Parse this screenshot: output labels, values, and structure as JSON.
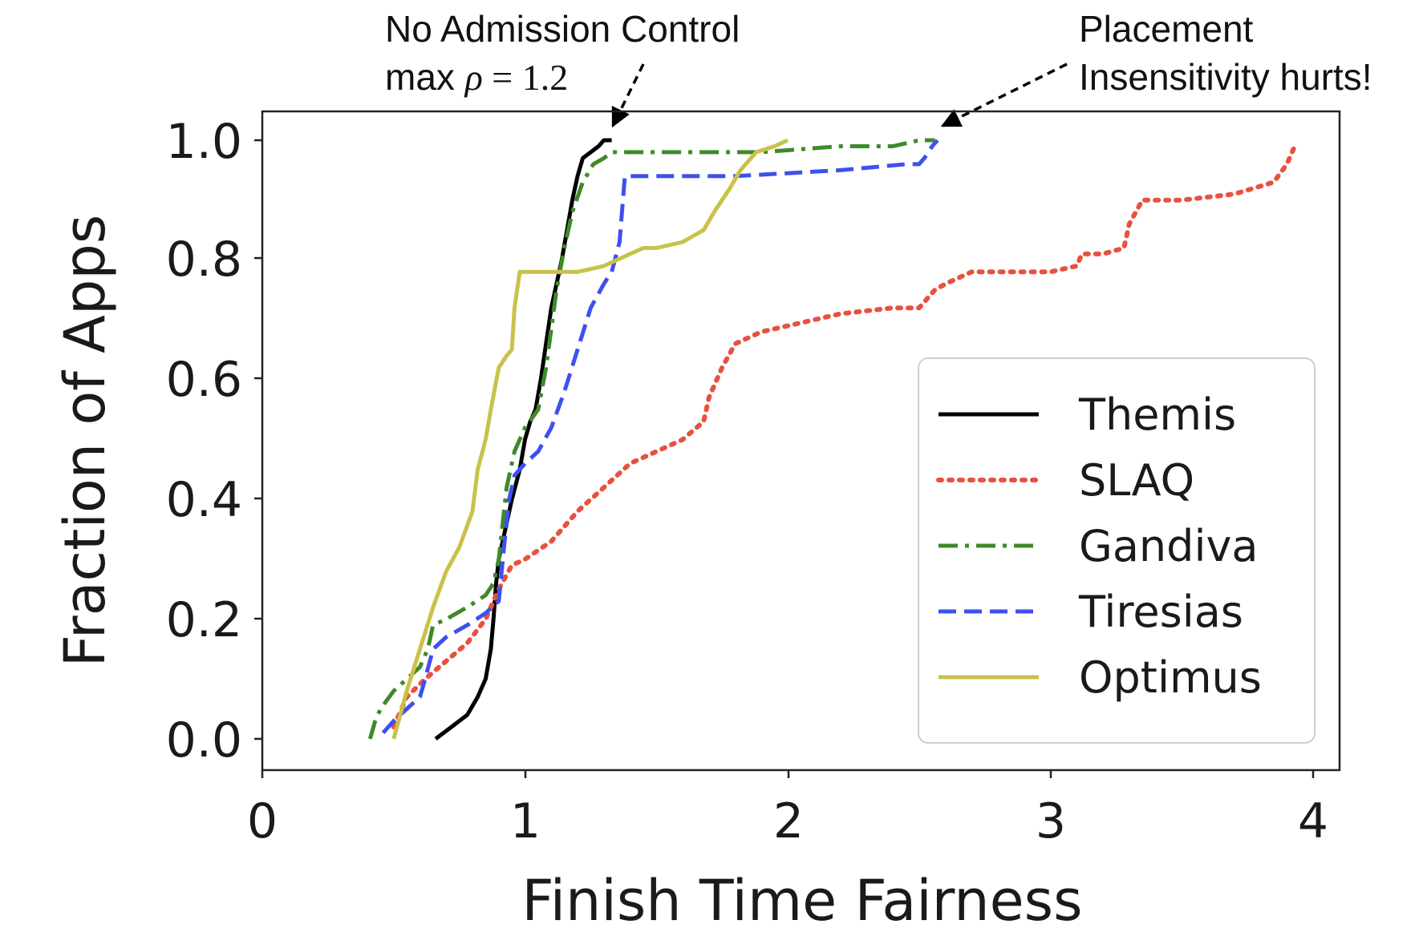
{
  "chart_data": {
    "type": "line",
    "title": "",
    "xlabel": "Finish Time Fairness",
    "ylabel": "Fraction of Apps",
    "xlim": [
      0,
      4.1
    ],
    "ylim": [
      -0.05,
      1.05
    ],
    "xticks": [
      "0",
      "1",
      "2",
      "3",
      "4"
    ],
    "yticks": [
      "0.0",
      "0.2",
      "0.4",
      "0.6",
      "0.8",
      "1.0"
    ],
    "grid": false,
    "legend_position": "lower-right",
    "annotations": [
      {
        "text_line1": "No Admission Control",
        "text_line2_prefix": "max ",
        "rho": "ρ",
        "text_line2_suffix": " = 1.2",
        "points_to": [
          1.33,
          1.0
        ]
      },
      {
        "text_line1": "Placement",
        "text_line2": "Insensitivity hurts!",
        "points_to": [
          2.57,
          1.0
        ]
      }
    ],
    "series": [
      {
        "name": "Themis",
        "color": "#000000",
        "dash": "solid",
        "x": [
          0.66,
          0.72,
          0.78,
          0.82,
          0.85,
          0.87,
          0.88,
          0.89,
          0.9,
          0.92,
          0.95,
          0.98,
          1.0,
          1.02,
          1.04,
          1.06,
          1.08,
          1.1,
          1.12,
          1.14,
          1.16,
          1.18,
          1.2,
          1.22,
          1.25,
          1.28,
          1.3,
          1.33
        ],
        "y": [
          0.0,
          0.02,
          0.04,
          0.07,
          0.1,
          0.15,
          0.2,
          0.26,
          0.3,
          0.34,
          0.4,
          0.45,
          0.5,
          0.53,
          0.55,
          0.6,
          0.66,
          0.72,
          0.76,
          0.8,
          0.85,
          0.9,
          0.94,
          0.97,
          0.98,
          0.99,
          1.0,
          1.0
        ]
      },
      {
        "name": "SLAQ",
        "color": "#e8513f",
        "dash": "dotted",
        "x": [
          0.5,
          0.55,
          0.62,
          0.7,
          0.78,
          0.85,
          0.9,
          0.95,
          1.0,
          1.1,
          1.2,
          1.3,
          1.4,
          1.5,
          1.6,
          1.68,
          1.7,
          1.75,
          1.8,
          1.9,
          2.0,
          2.1,
          2.2,
          2.4,
          2.5,
          2.56,
          2.6,
          2.7,
          2.8,
          3.0,
          3.1,
          3.12,
          3.2,
          3.28,
          3.3,
          3.35,
          3.5,
          3.7,
          3.85,
          3.9,
          3.93
        ],
        "y": [
          0.02,
          0.07,
          0.1,
          0.13,
          0.16,
          0.2,
          0.25,
          0.29,
          0.3,
          0.33,
          0.38,
          0.42,
          0.46,
          0.48,
          0.5,
          0.53,
          0.57,
          0.62,
          0.66,
          0.68,
          0.69,
          0.7,
          0.71,
          0.72,
          0.72,
          0.75,
          0.76,
          0.78,
          0.78,
          0.78,
          0.79,
          0.81,
          0.81,
          0.82,
          0.86,
          0.9,
          0.9,
          0.91,
          0.93,
          0.96,
          0.99
        ]
      },
      {
        "name": "Gandiva",
        "color": "#3f8a2a",
        "dash": "dashdot",
        "x": [
          0.41,
          0.43,
          0.45,
          0.5,
          0.55,
          0.6,
          0.63,
          0.65,
          0.7,
          0.78,
          0.85,
          0.88,
          0.9,
          0.93,
          0.96,
          1.0,
          1.05,
          1.08,
          1.12,
          1.15,
          1.18,
          1.22,
          1.26,
          1.3,
          1.33,
          1.4,
          1.6,
          1.9,
          2.2,
          2.4,
          2.5,
          2.56
        ],
        "y": [
          0.0,
          0.03,
          0.05,
          0.08,
          0.1,
          0.12,
          0.15,
          0.19,
          0.2,
          0.22,
          0.24,
          0.26,
          0.3,
          0.42,
          0.48,
          0.52,
          0.55,
          0.62,
          0.75,
          0.82,
          0.88,
          0.93,
          0.96,
          0.97,
          0.98,
          0.98,
          0.98,
          0.98,
          0.99,
          0.99,
          1.0,
          1.0
        ]
      },
      {
        "name": "Tiresias",
        "color": "#3e50ef",
        "dash": "dashed",
        "x": [
          0.46,
          0.5,
          0.55,
          0.6,
          0.62,
          0.65,
          0.7,
          0.78,
          0.85,
          0.9,
          0.92,
          0.94,
          0.96,
          1.0,
          1.05,
          1.1,
          1.15,
          1.2,
          1.25,
          1.3,
          1.33,
          1.36,
          1.38,
          1.5,
          1.8,
          2.2,
          2.45,
          2.5,
          2.52,
          2.55,
          2.57
        ],
        "y": [
          0.01,
          0.03,
          0.05,
          0.07,
          0.1,
          0.15,
          0.17,
          0.19,
          0.21,
          0.23,
          0.32,
          0.4,
          0.44,
          0.46,
          0.48,
          0.52,
          0.58,
          0.65,
          0.72,
          0.76,
          0.78,
          0.83,
          0.94,
          0.94,
          0.94,
          0.95,
          0.96,
          0.96,
          0.97,
          0.99,
          1.0
        ]
      },
      {
        "name": "Optimus",
        "color": "#c9c24a",
        "dash": "solid",
        "x": [
          0.5,
          0.55,
          0.6,
          0.65,
          0.7,
          0.75,
          0.8,
          0.82,
          0.85,
          0.87,
          0.9,
          0.93,
          0.95,
          0.96,
          0.98,
          1.0,
          1.05,
          1.1,
          1.2,
          1.3,
          1.35,
          1.4,
          1.45,
          1.5,
          1.6,
          1.68,
          1.72,
          1.78,
          1.82,
          1.88,
          1.95,
          2.0
        ],
        "y": [
          0.0,
          0.08,
          0.15,
          0.22,
          0.28,
          0.32,
          0.38,
          0.45,
          0.5,
          0.55,
          0.62,
          0.64,
          0.65,
          0.72,
          0.78,
          0.78,
          0.78,
          0.78,
          0.78,
          0.79,
          0.8,
          0.81,
          0.82,
          0.82,
          0.83,
          0.85,
          0.88,
          0.92,
          0.95,
          0.98,
          0.99,
          1.0
        ]
      }
    ]
  }
}
